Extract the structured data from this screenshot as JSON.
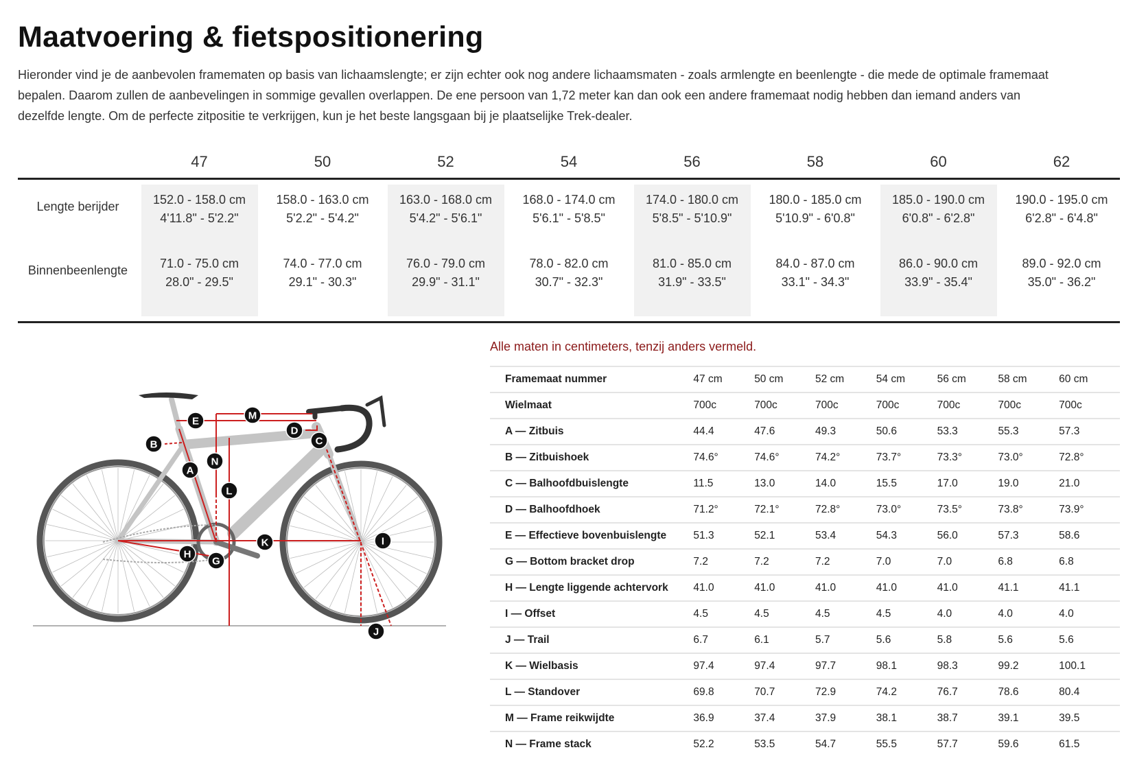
{
  "title": "Maatvoering & fietspositionering",
  "intro_lines": [
    "Hieronder vind je de aanbevolen framematen op basis van lichaamslengte; er zijn echter ook nog andere lichaamsmaten - zoals armlengte en beenlengte - die mede de optimale framemaat",
    "bepalen. Daarom zullen de aanbevelingen in sommige gevallen overlappen. De ene persoon van 1,72 meter kan dan ook een andere framemaat nodig hebben dan iemand anders van",
    "dezelfde lengte. Om de perfecte zitpositie te verkrijgen, kun je het beste langsgaan bij je plaatselijke Trek-dealer."
  ],
  "size_table": {
    "sizes": [
      "47",
      "50",
      "52",
      "54",
      "56",
      "58",
      "60",
      "62"
    ],
    "rows": [
      {
        "label": "Lengte berijder",
        "cells": [
          [
            "152.0 - 158.0 cm",
            "4'11.8\" - 5'2.2\""
          ],
          [
            "158.0 - 163.0 cm",
            "5'2.2\" - 5'4.2\""
          ],
          [
            "163.0 - 168.0 cm",
            "5'4.2\" - 5'6.1\""
          ],
          [
            "168.0 - 174.0 cm",
            "5'6.1\" - 5'8.5\""
          ],
          [
            "174.0 - 180.0 cm",
            "5'8.5\" - 5'10.9\""
          ],
          [
            "180.0 - 185.0 cm",
            "5'10.9\" - 6'0.8\""
          ],
          [
            "185.0 - 190.0 cm",
            "6'0.8\" - 6'2.8\""
          ],
          [
            "190.0 - 195.0 cm",
            "6'2.8\" - 6'4.8\""
          ]
        ]
      },
      {
        "label": "Binnenbeenlengte",
        "cells": [
          [
            "71.0 - 75.0 cm",
            "28.0\" - 29.5\""
          ],
          [
            "74.0 - 77.0 cm",
            "29.1\" - 30.3\""
          ],
          [
            "76.0 - 79.0 cm",
            "29.9\" - 31.1\""
          ],
          [
            "78.0 - 82.0 cm",
            "30.7\" - 32.3\""
          ],
          [
            "81.0 - 85.0 cm",
            "31.9\" - 33.5\""
          ],
          [
            "84.0 - 87.0 cm",
            "33.1\" - 34.3\""
          ],
          [
            "86.0 - 90.0 cm",
            "33.9\" - 35.4\""
          ],
          [
            "89.0 - 92.0 cm",
            "35.0\" - 36.2\""
          ]
        ]
      }
    ]
  },
  "note": "Alle maten in centimeters, tenzij anders vermeld.",
  "note_color": "#8b1a1a",
  "geometry": {
    "rows": [
      {
        "label": "Framemaat nummer",
        "values": [
          "47 cm",
          "50 cm",
          "52 cm",
          "54 cm",
          "56 cm",
          "58 cm",
          "60 cm"
        ]
      },
      {
        "label": "Wielmaat",
        "values": [
          "700c",
          "700c",
          "700c",
          "700c",
          "700c",
          "700c",
          "700c"
        ]
      },
      {
        "label": "A — Zitbuis",
        "values": [
          "44.4",
          "47.6",
          "49.3",
          "50.6",
          "53.3",
          "55.3",
          "57.3"
        ]
      },
      {
        "label": "B — Zitbuishoek",
        "values": [
          "74.6°",
          "74.6°",
          "74.2°",
          "73.7°",
          "73.3°",
          "73.0°",
          "72.8°"
        ]
      },
      {
        "label": "C — Balhoofdbuislengte",
        "values": [
          "11.5",
          "13.0",
          "14.0",
          "15.5",
          "17.0",
          "19.0",
          "21.0"
        ]
      },
      {
        "label": "D — Balhoofdhoek",
        "values": [
          "71.2°",
          "72.1°",
          "72.8°",
          "73.0°",
          "73.5°",
          "73.8°",
          "73.9°"
        ]
      },
      {
        "label": "E — Effectieve bovenbuislengte",
        "values": [
          "51.3",
          "52.1",
          "53.4",
          "54.3",
          "56.0",
          "57.3",
          "58.6"
        ]
      },
      {
        "label": "G — Bottom bracket drop",
        "values": [
          "7.2",
          "7.2",
          "7.2",
          "7.0",
          "7.0",
          "6.8",
          "6.8"
        ]
      },
      {
        "label": "H — Lengte liggende achtervork",
        "values": [
          "41.0",
          "41.0",
          "41.0",
          "41.0",
          "41.0",
          "41.1",
          "41.1"
        ]
      },
      {
        "label": "I — Offset",
        "values": [
          "4.5",
          "4.5",
          "4.5",
          "4.5",
          "4.0",
          "4.0",
          "4.0"
        ]
      },
      {
        "label": "J — Trail",
        "values": [
          "6.7",
          "6.1",
          "5.7",
          "5.6",
          "5.8",
          "5.6",
          "5.6"
        ]
      },
      {
        "label": "K — Wielbasis",
        "values": [
          "97.4",
          "97.4",
          "97.7",
          "98.1",
          "98.3",
          "99.2",
          "100.1"
        ]
      },
      {
        "label": "L — Standover",
        "values": [
          "69.8",
          "70.7",
          "72.9",
          "74.2",
          "76.7",
          "78.6",
          "80.4"
        ]
      },
      {
        "label": "M — Frame reikwijdte",
        "values": [
          "36.9",
          "37.4",
          "37.9",
          "38.1",
          "38.7",
          "39.1",
          "39.5"
        ]
      },
      {
        "label": "N — Frame stack",
        "values": [
          "52.2",
          "53.5",
          "54.7",
          "55.5",
          "57.7",
          "59.6",
          "61.5"
        ]
      }
    ]
  },
  "diagram": {
    "labels": [
      "A",
      "B",
      "C",
      "D",
      "E",
      "G",
      "H",
      "I",
      "J",
      "K",
      "L",
      "M",
      "N"
    ],
    "line_color": "#cc1f1f"
  }
}
